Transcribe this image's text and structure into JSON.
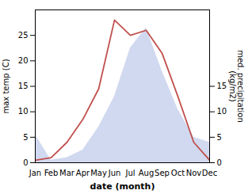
{
  "chart_data": {
    "type": "line",
    "xlabel": "date (month)",
    "ylabel": "max temp (C)",
    "y2label": "med. precipitation\n(kg/m2)",
    "categories": [
      "Jan",
      "Feb",
      "Mar",
      "Apr",
      "May",
      "Jun",
      "Jul",
      "Aug",
      "Sep",
      "Oct",
      "Nov",
      "Dec"
    ],
    "series": [
      {
        "type": "area",
        "axis": "y2",
        "color": "#b8c4e8",
        "values": [
          5.5,
          0.5,
          1.0,
          2.5,
          7.0,
          13.0,
          22.5,
          26.5,
          18.0,
          10.5,
          5.0,
          4.0
        ]
      },
      {
        "type": "line",
        "color": "#c0504d",
        "values": [
          0.5,
          1.0,
          4.0,
          8.5,
          14.5,
          28.0,
          25.0,
          26.0,
          21.5,
          13.0,
          4.0,
          0.5
        ]
      }
    ],
    "ylim": [
      0,
      30
    ],
    "yticks": [
      0,
      5,
      10,
      15,
      20,
      25
    ],
    "y2lim": [
      0,
      30
    ],
    "y2ticks": [
      0,
      5,
      10,
      15
    ],
    "grid": false
  }
}
